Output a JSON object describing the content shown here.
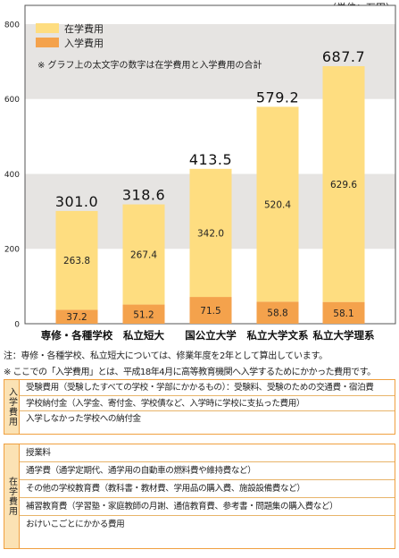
{
  "unit_label": "（単位：万円）",
  "chart_data": {
    "type": "bar",
    "stacked": true,
    "categories": [
      "専修・各種学校",
      "私立短大",
      "国公立大学",
      "私立大学文系",
      "私立大学理系"
    ],
    "series": [
      {
        "name": "入学費用",
        "values": [
          37.2,
          51.2,
          71.5,
          58.8,
          58.1
        ]
      },
      {
        "name": "在学費用",
        "values": [
          263.8,
          267.4,
          342.0,
          520.4,
          629.6
        ]
      }
    ],
    "totals": [
      301.0,
      318.6,
      413.5,
      579.2,
      687.7
    ],
    "total_labels": [
      "301.0",
      "318.6",
      "413.5",
      "579.2",
      "687.7"
    ],
    "zaigaku_labels": [
      "263.8",
      "267.4",
      "342.0",
      "520.4",
      "629.6"
    ],
    "nyugaku_labels": [
      "37.2",
      "51.2",
      "71.5",
      "58.8",
      "58.1"
    ],
    "ylim": [
      0,
      850
    ],
    "yticks": [
      0,
      200,
      400,
      600,
      800
    ],
    "legend": {
      "position": "top-left",
      "items": [
        "在学費用",
        "入学費用"
      ]
    },
    "annotation": "※ グラフ上の太文字の数字は在学費用と入学費用の合計",
    "colors": {
      "在学費用": "#fedd80",
      "入学費用": "#f4a24c",
      "band": "#e6e4e2",
      "frame": "#555555"
    }
  },
  "chart_note": "注：専修・各種学校、私立短大については、修業年度を2年として算出しています。",
  "section_note": "※ ここでの「入学費用」とは、平成18年4月に高等教育機関へ入学するためにかかった費用です。",
  "nyugaku_box": {
    "label": "入学費用",
    "items": [
      "受験費用（受験したすべての学校・学部にかかるもの）：受験料、受験のための交通費・宿泊費",
      "学校納付金（入学金、寄付金、学校債など、入学時に学校に支払った費用）",
      "入学しなかった学校への納付金"
    ]
  },
  "zaigaku_box": {
    "label": "在学費用",
    "items": [
      "授業料",
      "通学費（通学定期代、通学用の自動車の燃料費や維持費など）",
      "その他の学校教育費（教科書・教材費、学用品の購入費、施設設備費など）",
      "補習教育費（学習塾・家庭教師の月謝、通信教育費、参考書・問題集の購入費など）",
      "おけいこごとにかかる費用"
    ]
  }
}
